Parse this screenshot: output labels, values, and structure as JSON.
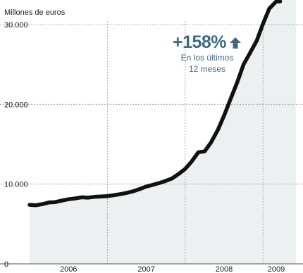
{
  "chart_data": {
    "type": "area",
    "unit_label": "Millones de euros",
    "ylim": [
      0,
      30000
    ],
    "yticks": [
      {
        "value": 0,
        "label": "0"
      },
      {
        "value": 10000,
        "label": "10.000"
      },
      {
        "value": 20000,
        "label": "20.000"
      },
      {
        "value": 30000,
        "label": "30.000"
      }
    ],
    "xlim": [
      2006.0,
      2009.333
    ],
    "year_labels": [
      {
        "x": 2006.5,
        "label": "2006"
      },
      {
        "x": 2007.5,
        "label": "2007"
      },
      {
        "x": 2008.5,
        "label": "2008"
      },
      {
        "x": 2009.17,
        "label": "2009"
      }
    ],
    "year_boundaries": [
      2007,
      2008,
      2009
    ],
    "x": [
      2006.0,
      2006.08,
      2006.17,
      2006.25,
      2006.33,
      2006.42,
      2006.5,
      2006.58,
      2006.67,
      2006.75,
      2006.83,
      2006.92,
      2007.0,
      2007.08,
      2007.17,
      2007.25,
      2007.33,
      2007.42,
      2007.5,
      2007.58,
      2007.67,
      2007.75,
      2007.83,
      2007.92,
      2008.0,
      2008.08,
      2008.17,
      2008.25,
      2008.33,
      2008.42,
      2008.5,
      2008.58,
      2008.67,
      2008.75,
      2008.83,
      2008.92,
      2009.0,
      2009.08,
      2009.17,
      2009.22
    ],
    "values": [
      7400,
      7350,
      7500,
      7700,
      7750,
      7950,
      8100,
      8200,
      8350,
      8300,
      8400,
      8450,
      8500,
      8600,
      8750,
      8900,
      9100,
      9400,
      9700,
      9900,
      10150,
      10400,
      10700,
      11300,
      11900,
      12800,
      14000,
      14100,
      15200,
      16800,
      18600,
      20600,
      22800,
      25000,
      26400,
      28000,
      30100,
      32000,
      33500,
      34200
    ],
    "annotation": {
      "value": "+158%",
      "text": [
        "En los últimos",
        "12 meses"
      ],
      "color": "#3f6b80"
    },
    "colors": {
      "line": "#111111",
      "area": "#edf0f1",
      "grid": "#9a9a9a",
      "arrow": "#3f6b80"
    },
    "grid": true
  }
}
